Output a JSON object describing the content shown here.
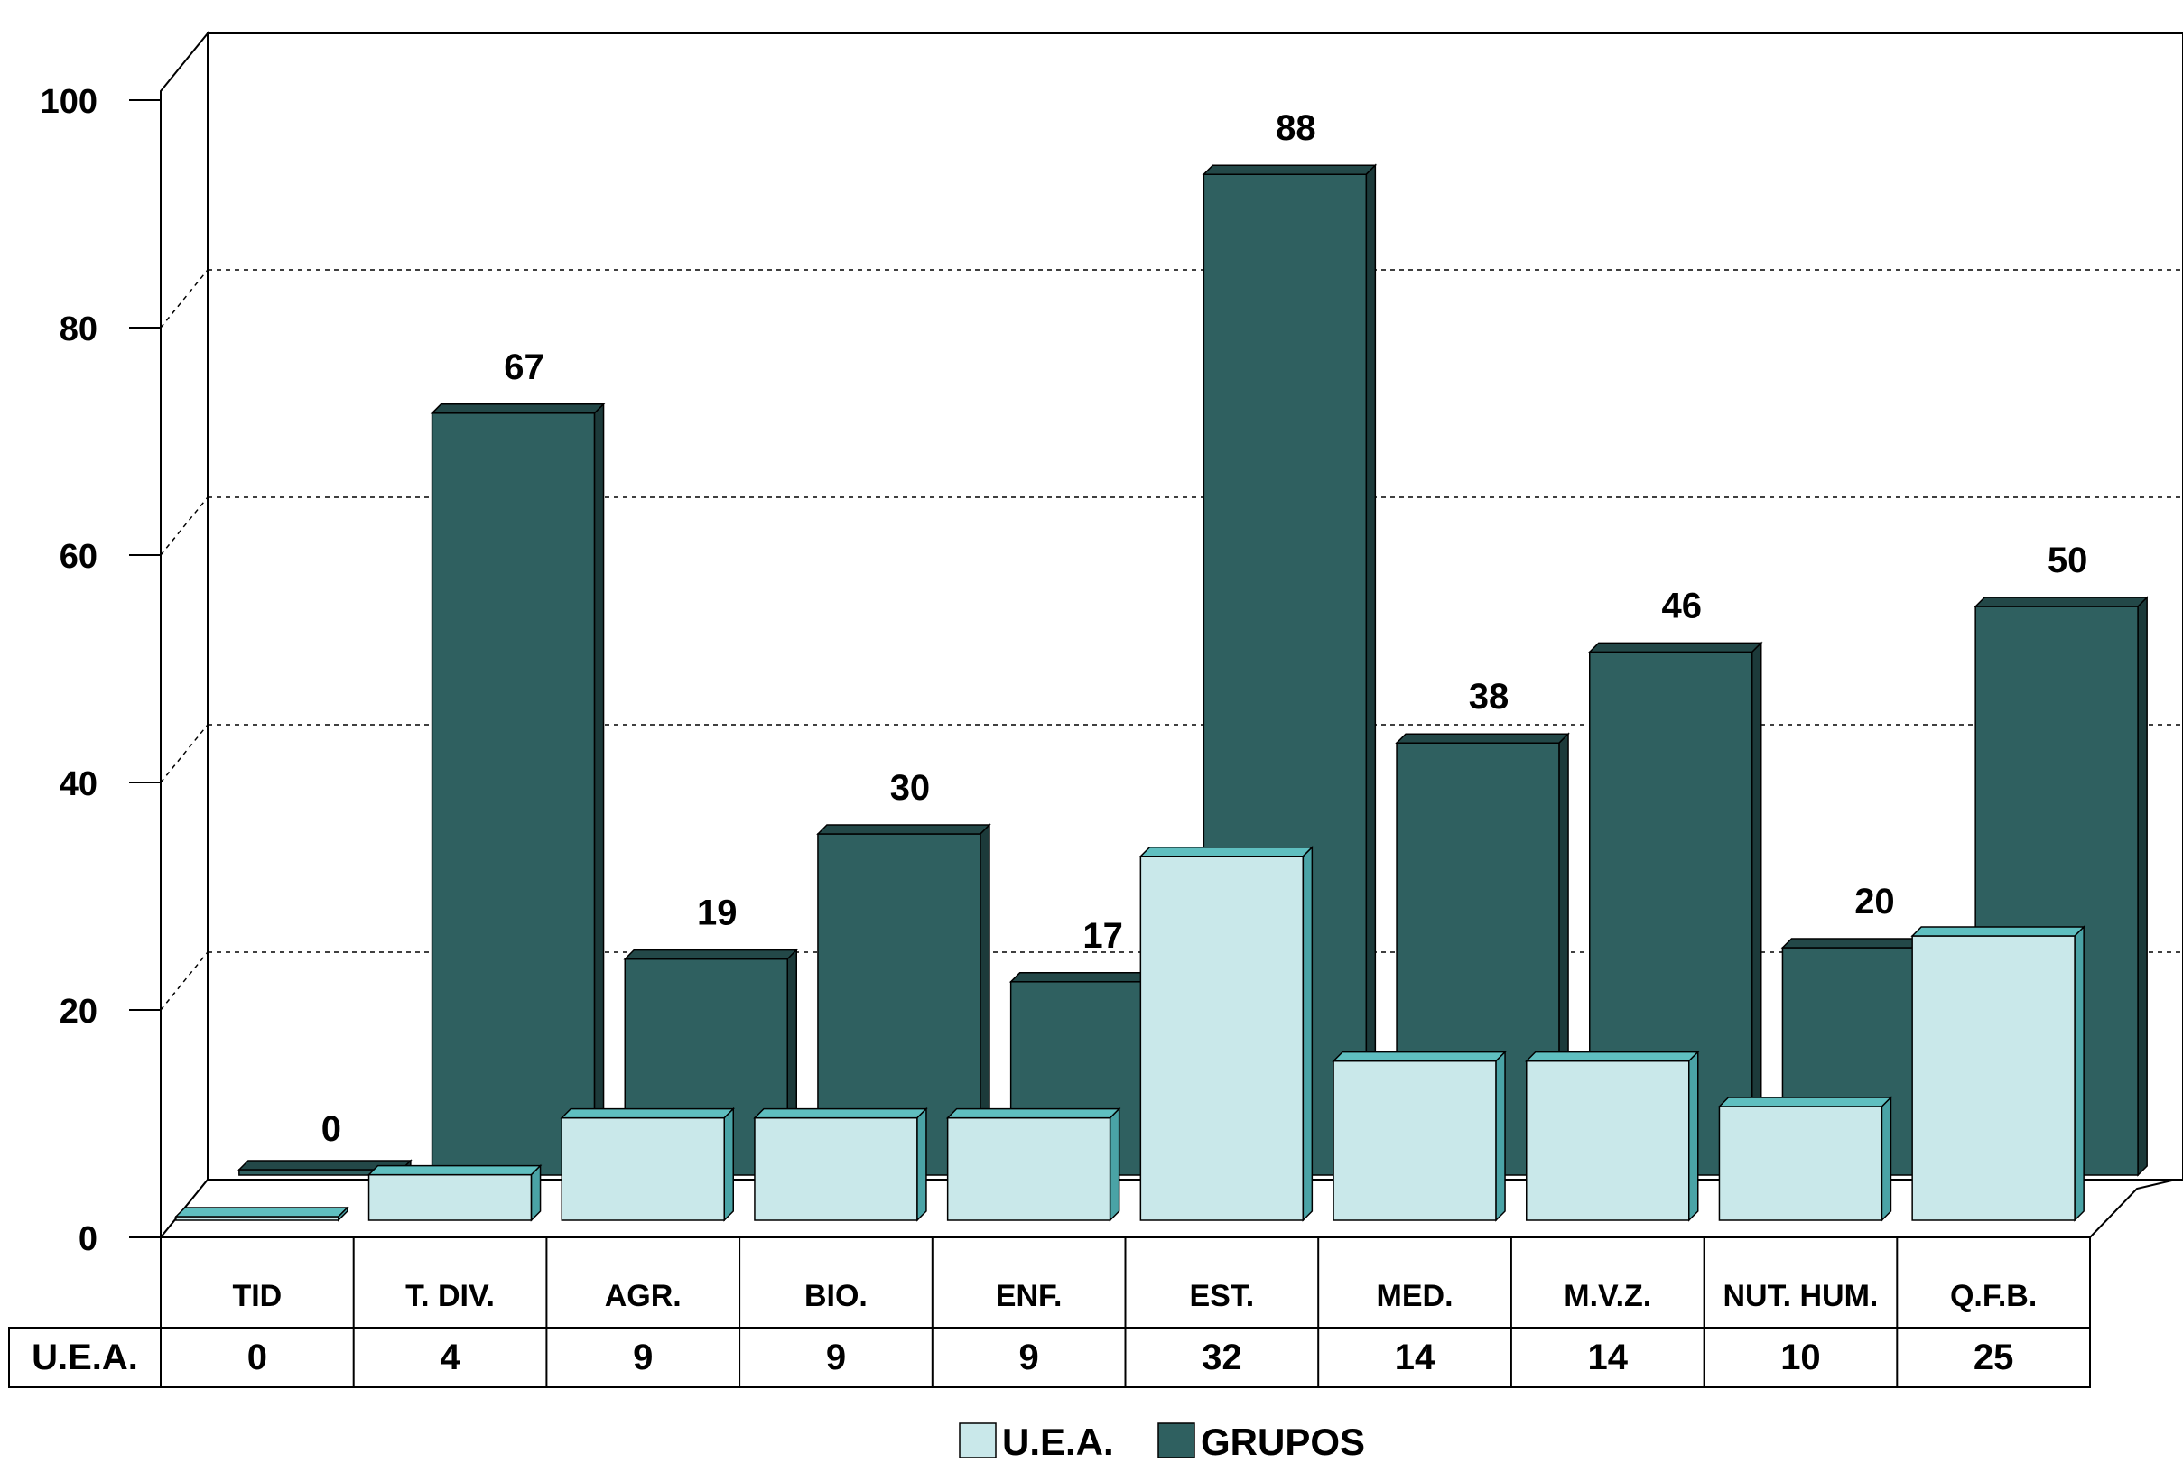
{
  "chart_data": {
    "type": "bar",
    "three_d": true,
    "categories": [
      "TID",
      "T. DIV.",
      "AGR.",
      "BIO.",
      "ENF.",
      "EST.",
      "MED.",
      "M.V.Z.",
      "NUT. HUM.",
      "Q.F.B."
    ],
    "series": [
      {
        "name": "U.E.A.",
        "values": [
          0,
          4,
          9,
          9,
          9,
          32,
          14,
          14,
          10,
          25
        ],
        "color": "#c9e8ea",
        "top_color": "#5fbfc0",
        "side_color": "#4aa3a6",
        "in_table": true
      },
      {
        "name": "GRUPOS",
        "values": [
          0,
          67,
          19,
          30,
          17,
          88,
          38,
          46,
          20,
          50
        ],
        "color": "#2f6060",
        "top_color": "#234848",
        "side_color": "#1c3a3a",
        "data_labels": [
          "0",
          "67",
          "19",
          "30",
          "17",
          "88",
          "38",
          "46",
          "20",
          "50"
        ]
      }
    ],
    "yticks": [
      "0",
      "20",
      "40",
      "60",
      "80",
      "100"
    ],
    "ylim": [
      0,
      100
    ],
    "grid": "dashed",
    "legend_position": "bottom",
    "data_table": {
      "row_label": "U.E.A.",
      "values": [
        "0",
        "4",
        "9",
        "9",
        "9",
        "32",
        "14",
        "14",
        "10",
        "25"
      ]
    },
    "xlabel": "",
    "ylabel": "",
    "title": ""
  }
}
